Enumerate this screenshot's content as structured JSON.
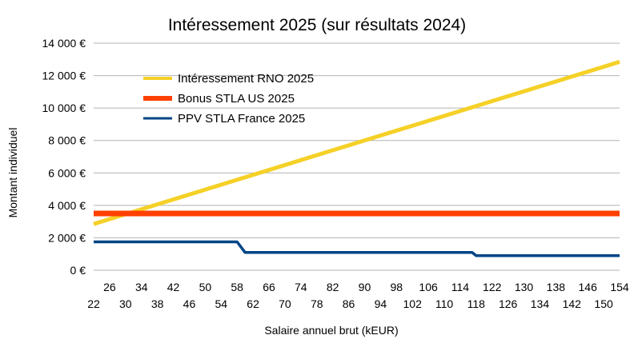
{
  "chart_data": {
    "type": "line",
    "title": "Intéressement 2025 (sur résultats 2024)",
    "xlabel": "Salaire annuel brut (kEUR)",
    "ylabel": "Montant individuel",
    "x_tick_labels_row1": [
      "26",
      "34",
      "42",
      "50",
      "58",
      "66",
      "74",
      "82",
      "90",
      "98",
      "106",
      "114",
      "122",
      "130",
      "138",
      "146",
      "154"
    ],
    "x_tick_labels_row2": [
      "22",
      "30",
      "38",
      "46",
      "54",
      "62",
      "70",
      "78",
      "86",
      "94",
      "102",
      "110",
      "118",
      "126",
      "134",
      "142",
      "150"
    ],
    "y_tick_labels": [
      "0 €",
      "2 000 €",
      "4 000 €",
      "6 000 €",
      "8 000 €",
      "10 000 €",
      "12 000 €",
      "14 000 €"
    ],
    "xlim": [
      22,
      154
    ],
    "ylim": [
      0,
      14000
    ],
    "grid": true,
    "legend_position": "top-left",
    "series": [
      {
        "name": "Intéressement RNO 2025",
        "color": "#F5D127",
        "points": [
          [
            22,
            2850
          ],
          [
            154,
            12850
          ]
        ]
      },
      {
        "name": "Bonus STLA US 2025",
        "color": "#FF4000",
        "points": [
          [
            22,
            3500
          ],
          [
            154,
            3500
          ]
        ]
      },
      {
        "name": "PPV STLA France 2025",
        "color": "#004586",
        "points": [
          [
            22,
            1750
          ],
          [
            58,
            1750
          ],
          [
            60,
            1100
          ],
          [
            117,
            1100
          ],
          [
            118,
            900
          ],
          [
            154,
            900
          ]
        ]
      }
    ]
  }
}
